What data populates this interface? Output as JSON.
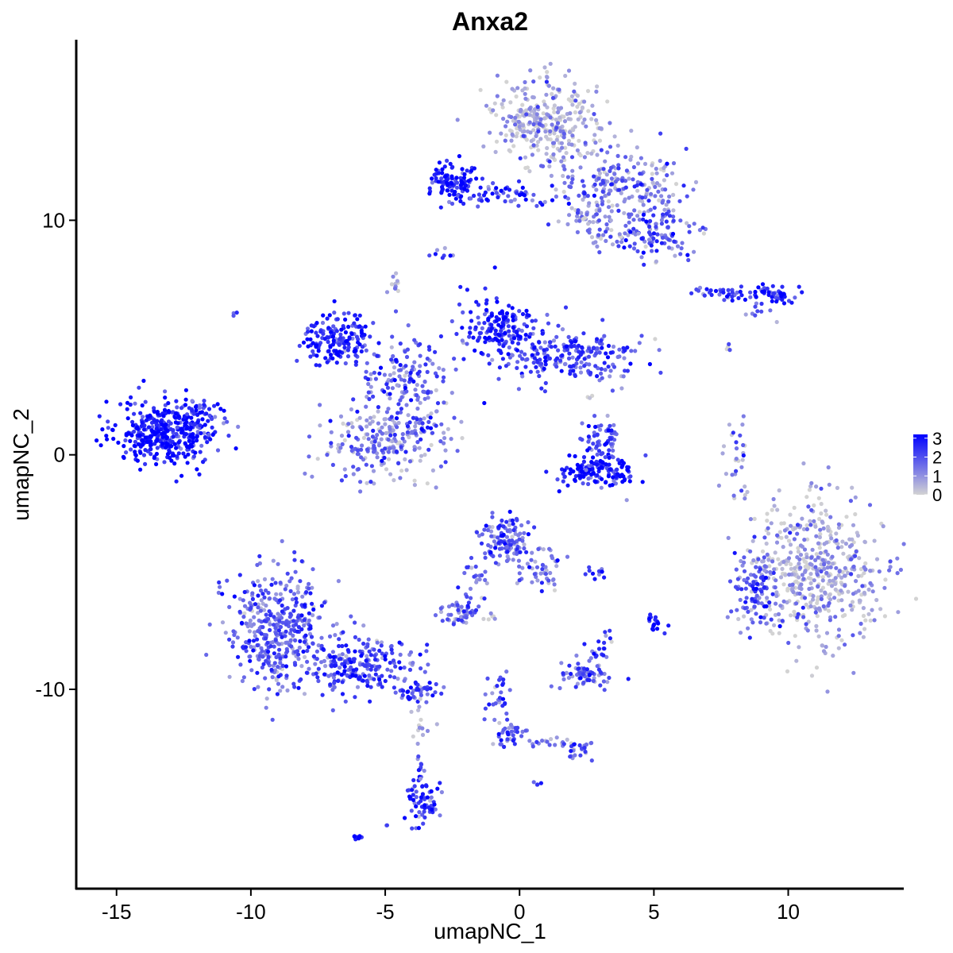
{
  "chart_data": {
    "type": "scatter",
    "title": "Anxa2",
    "xlabel": "umapNC_1",
    "ylabel": "umapNC_2",
    "xlim": [
      -16.5,
      14.3
    ],
    "ylim": [
      -18.5,
      17.7
    ],
    "x_ticks": [
      -15,
      -10,
      -5,
      0,
      5,
      10
    ],
    "x_tick_labels": [
      "-15",
      "-10",
      "-5",
      "0",
      "5",
      "10"
    ],
    "y_ticks": [
      -10,
      0,
      10
    ],
    "y_tick_labels": [
      "-10",
      "0",
      "10"
    ],
    "grid": false,
    "color_scale": {
      "low_color": "#d3d3d3",
      "high_color": "#0000ff",
      "range": [
        0,
        3.2
      ],
      "ticks": [
        3,
        2,
        1,
        0
      ],
      "tick_labels": [
        "3",
        "2",
        "1",
        "0"
      ],
      "legend_position": "right"
    },
    "clusters": [
      {
        "center": [
          -13.2,
          0.9
        ],
        "spread": [
          0.9,
          0.7
        ],
        "n": 380,
        "expression": 2.8
      },
      {
        "center": [
          -11.8,
          1.6
        ],
        "spread": [
          0.5,
          0.4
        ],
        "n": 60,
        "expression": 2.3
      },
      {
        "center": [
          -10.6,
          6.0
        ],
        "spread": [
          0.05,
          0.05
        ],
        "n": 3,
        "expression": 2.0
      },
      {
        "center": [
          -6.8,
          5.0
        ],
        "spread": [
          0.6,
          0.6
        ],
        "n": 160,
        "expression": 2.6
      },
      {
        "center": [
          -5.0,
          0.6
        ],
        "spread": [
          1.1,
          0.9
        ],
        "n": 240,
        "expression": 1.2
      },
      {
        "center": [
          -4.3,
          3.3
        ],
        "spread": [
          0.9,
          0.9
        ],
        "n": 140,
        "expression": 1.8
      },
      {
        "center": [
          -4.6,
          7.2
        ],
        "spread": [
          0.2,
          0.2
        ],
        "n": 12,
        "expression": 1.0
      },
      {
        "center": [
          -3.8,
          1.2
        ],
        "spread": [
          0.4,
          0.2
        ],
        "n": 20,
        "expression": 2.6
      },
      {
        "center": [
          -0.8,
          5.3
        ],
        "spread": [
          0.8,
          0.7
        ],
        "n": 170,
        "expression": 2.5
      },
      {
        "center": [
          1.8,
          4.2
        ],
        "spread": [
          1.3,
          0.6
        ],
        "n": 210,
        "expression": 2.0
      },
      {
        "center": [
          -2.9,
          8.6
        ],
        "spread": [
          0.15,
          0.1
        ],
        "n": 8,
        "expression": 2.3
      },
      {
        "center": [
          -2.5,
          11.6
        ],
        "spread": [
          0.5,
          0.4
        ],
        "n": 110,
        "expression": 2.7
      },
      {
        "center": [
          -0.3,
          11.1
        ],
        "spread": [
          1.0,
          0.3
        ],
        "n": 60,
        "expression": 2.4
      },
      {
        "center": [
          1.0,
          14.2
        ],
        "spread": [
          1.0,
          0.9
        ],
        "n": 320,
        "expression": 0.5
      },
      {
        "center": [
          3.6,
          11.3
        ],
        "spread": [
          1.3,
          0.8
        ],
        "n": 240,
        "expression": 1.2
      },
      {
        "center": [
          5.2,
          9.5
        ],
        "spread": [
          0.7,
          0.5
        ],
        "n": 100,
        "expression": 1.8
      },
      {
        "center": [
          3.2,
          9.5
        ],
        "spread": [
          0.5,
          0.4
        ],
        "n": 40,
        "expression": 1.0
      },
      {
        "center": [
          7.5,
          6.9
        ],
        "spread": [
          0.5,
          0.15
        ],
        "n": 30,
        "expression": 2.3
      },
      {
        "center": [
          9.5,
          6.9
        ],
        "spread": [
          0.5,
          0.2
        ],
        "n": 50,
        "expression": 2.6
      },
      {
        "center": [
          8.9,
          6.0
        ],
        "spread": [
          0.3,
          0.2
        ],
        "n": 10,
        "expression": 1.5
      },
      {
        "center": [
          7.8,
          4.7
        ],
        "spread": [
          0.1,
          0.15
        ],
        "n": 4,
        "expression": 0.6
      },
      {
        "center": [
          2.9,
          -0.7
        ],
        "spread": [
          0.7,
          0.3
        ],
        "n": 140,
        "expression": 2.9
      },
      {
        "center": [
          3.0,
          0.7
        ],
        "spread": [
          0.4,
          0.5
        ],
        "n": 60,
        "expression": 2.2
      },
      {
        "center": [
          2.7,
          2.5
        ],
        "spread": [
          0.1,
          0.1
        ],
        "n": 3,
        "expression": 0.5
      },
      {
        "center": [
          8.1,
          -0.2
        ],
        "spread": [
          0.2,
          0.9
        ],
        "n": 30,
        "expression": 1.2
      },
      {
        "center": [
          11.0,
          -5.0
        ],
        "spread": [
          1.2,
          1.5
        ],
        "n": 520,
        "expression": 0.6
      },
      {
        "center": [
          8.8,
          -5.8
        ],
        "spread": [
          0.4,
          0.8
        ],
        "n": 100,
        "expression": 1.8
      },
      {
        "center": [
          -0.6,
          -3.6
        ],
        "spread": [
          0.5,
          0.5
        ],
        "n": 120,
        "expression": 1.8
      },
      {
        "center": [
          0.8,
          -4.8
        ],
        "spread": [
          0.5,
          0.5
        ],
        "n": 50,
        "expression": 1.5
      },
      {
        "center": [
          -1.7,
          -5.7
        ],
        "spread": [
          0.3,
          0.6
        ],
        "n": 25,
        "expression": 1.3
      },
      {
        "center": [
          -2.3,
          -6.8
        ],
        "spread": [
          0.35,
          0.25
        ],
        "n": 45,
        "expression": 1.5
      },
      {
        "center": [
          -1.0,
          -7.0
        ],
        "spread": [
          0.2,
          0.1
        ],
        "n": 6,
        "expression": 0.8
      },
      {
        "center": [
          2.9,
          -5.0
        ],
        "spread": [
          0.3,
          0.1
        ],
        "n": 10,
        "expression": 1.8
      },
      {
        "center": [
          5.1,
          -7.2
        ],
        "spread": [
          0.15,
          0.2
        ],
        "n": 18,
        "expression": 3.0
      },
      {
        "center": [
          3.3,
          -7.6
        ],
        "spread": [
          0.1,
          0.15
        ],
        "n": 5,
        "expression": 1.5
      },
      {
        "center": [
          2.5,
          -9.4
        ],
        "spread": [
          0.5,
          0.3
        ],
        "n": 70,
        "expression": 1.7
      },
      {
        "center": [
          2.9,
          -8.5
        ],
        "spread": [
          0.2,
          0.3
        ],
        "n": 15,
        "expression": 2.3
      },
      {
        "center": [
          -9.0,
          -7.5
        ],
        "spread": [
          1.0,
          1.3
        ],
        "n": 420,
        "expression": 1.6
      },
      {
        "center": [
          -5.8,
          -9.0
        ],
        "spread": [
          1.0,
          0.6
        ],
        "n": 200,
        "expression": 2.0
      },
      {
        "center": [
          -3.9,
          -10.2
        ],
        "spread": [
          0.4,
          0.3
        ],
        "n": 40,
        "expression": 2.3
      },
      {
        "center": [
          -3.8,
          -11.5
        ],
        "spread": [
          0.2,
          0.5
        ],
        "n": 15,
        "expression": 0.3
      },
      {
        "center": [
          -3.6,
          -14.7
        ],
        "spread": [
          0.3,
          0.5
        ],
        "n": 70,
        "expression": 2.3
      },
      {
        "center": [
          -3.7,
          -13.3
        ],
        "spread": [
          0.1,
          0.3
        ],
        "n": 8,
        "expression": 1.5
      },
      {
        "center": [
          -6.0,
          -16.3
        ],
        "spread": [
          0.1,
          0.05
        ],
        "n": 8,
        "expression": 2.6
      },
      {
        "center": [
          -4.9,
          -15.8
        ],
        "spread": [
          0.05,
          0.05
        ],
        "n": 2,
        "expression": 2.6
      },
      {
        "center": [
          -0.8,
          -10.5
        ],
        "spread": [
          0.2,
          0.6
        ],
        "n": 30,
        "expression": 1.8
      },
      {
        "center": [
          -0.3,
          -11.9
        ],
        "spread": [
          0.3,
          0.3
        ],
        "n": 35,
        "expression": 1.6
      },
      {
        "center": [
          1.3,
          -12.3
        ],
        "spread": [
          0.6,
          0.1
        ],
        "n": 20,
        "expression": 1.3
      },
      {
        "center": [
          2.3,
          -12.6
        ],
        "spread": [
          0.3,
          0.2
        ],
        "n": 20,
        "expression": 2.0
      },
      {
        "center": [
          0.6,
          -14.0
        ],
        "spread": [
          0.1,
          0.05
        ],
        "n": 4,
        "expression": 2.0
      },
      {
        "center": [
          4.0,
          -2.0
        ],
        "spread": [
          0.05,
          0.05
        ],
        "n": 1,
        "expression": 0.2
      },
      {
        "center": [
          5.1,
          8.2
        ],
        "spread": [
          0.05,
          0.05
        ],
        "n": 2,
        "expression": 0.3
      },
      {
        "center": [
          5.0,
          4.9
        ],
        "spread": [
          0.05,
          0.05
        ],
        "n": 1,
        "expression": 0.3
      },
      {
        "center": [
          -1.0,
          8.0
        ],
        "spread": [
          0.05,
          0.05
        ],
        "n": 1,
        "expression": 1.5
      }
    ]
  }
}
